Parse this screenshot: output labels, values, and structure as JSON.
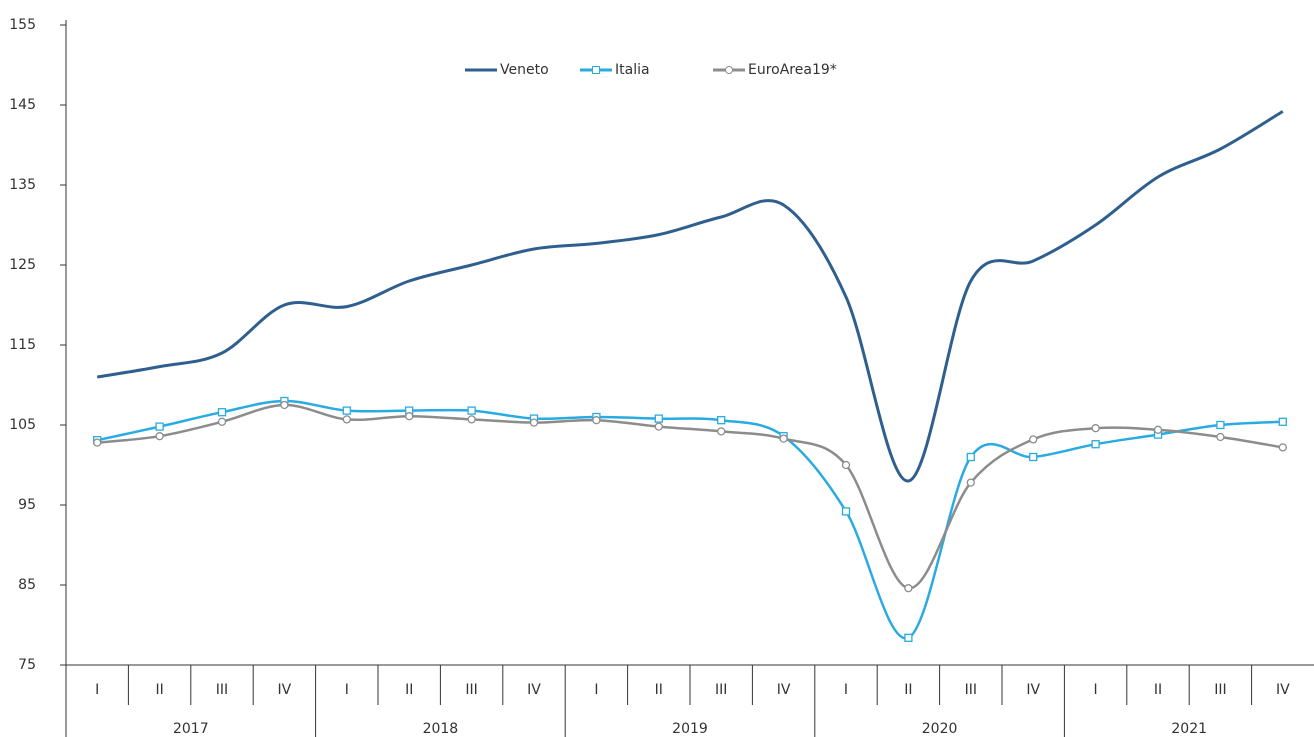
{
  "chart_data": {
    "type": "line",
    "categories": [
      "I",
      "II",
      "III",
      "IV",
      "I",
      "II",
      "III",
      "IV",
      "I",
      "II",
      "III",
      "IV",
      "I",
      "II",
      "III",
      "IV",
      "I",
      "II",
      "III",
      "IV"
    ],
    "groups": [
      "2017",
      "2018",
      "2019",
      "2020",
      "2021"
    ],
    "series": [
      {
        "name": "Veneto",
        "color": "#2e5f8f",
        "marker": "none",
        "values": [
          111,
          112.3,
          114,
          120,
          119.8,
          123,
          125,
          127,
          127.7,
          128.8,
          131,
          132.5,
          121,
          98,
          123,
          125.5,
          130,
          136,
          139.5,
          144.2
        ]
      },
      {
        "name": "Italia",
        "color": "#29abe2",
        "marker": "square",
        "values": [
          103.1,
          104.8,
          106.6,
          108,
          106.8,
          106.8,
          106.8,
          105.8,
          106,
          105.8,
          105.6,
          103.6,
          94.2,
          78.4,
          101,
          101,
          102.6,
          103.8,
          105,
          105.4
        ]
      },
      {
        "name": "EuroArea19*",
        "color": "#8c8c8c",
        "marker": "circle",
        "values": [
          102.8,
          103.6,
          105.4,
          107.5,
          105.7,
          106.1,
          105.7,
          105.3,
          105.6,
          104.8,
          104.2,
          103.3,
          100,
          84.6,
          97.8,
          103.2,
          104.6,
          104.4,
          103.5,
          102.2
        ]
      }
    ],
    "ylim": [
      75,
      155
    ],
    "yticks": [
      75,
      85,
      95,
      105,
      115,
      125,
      135,
      145,
      155
    ],
    "grid": false,
    "legend": "top"
  }
}
